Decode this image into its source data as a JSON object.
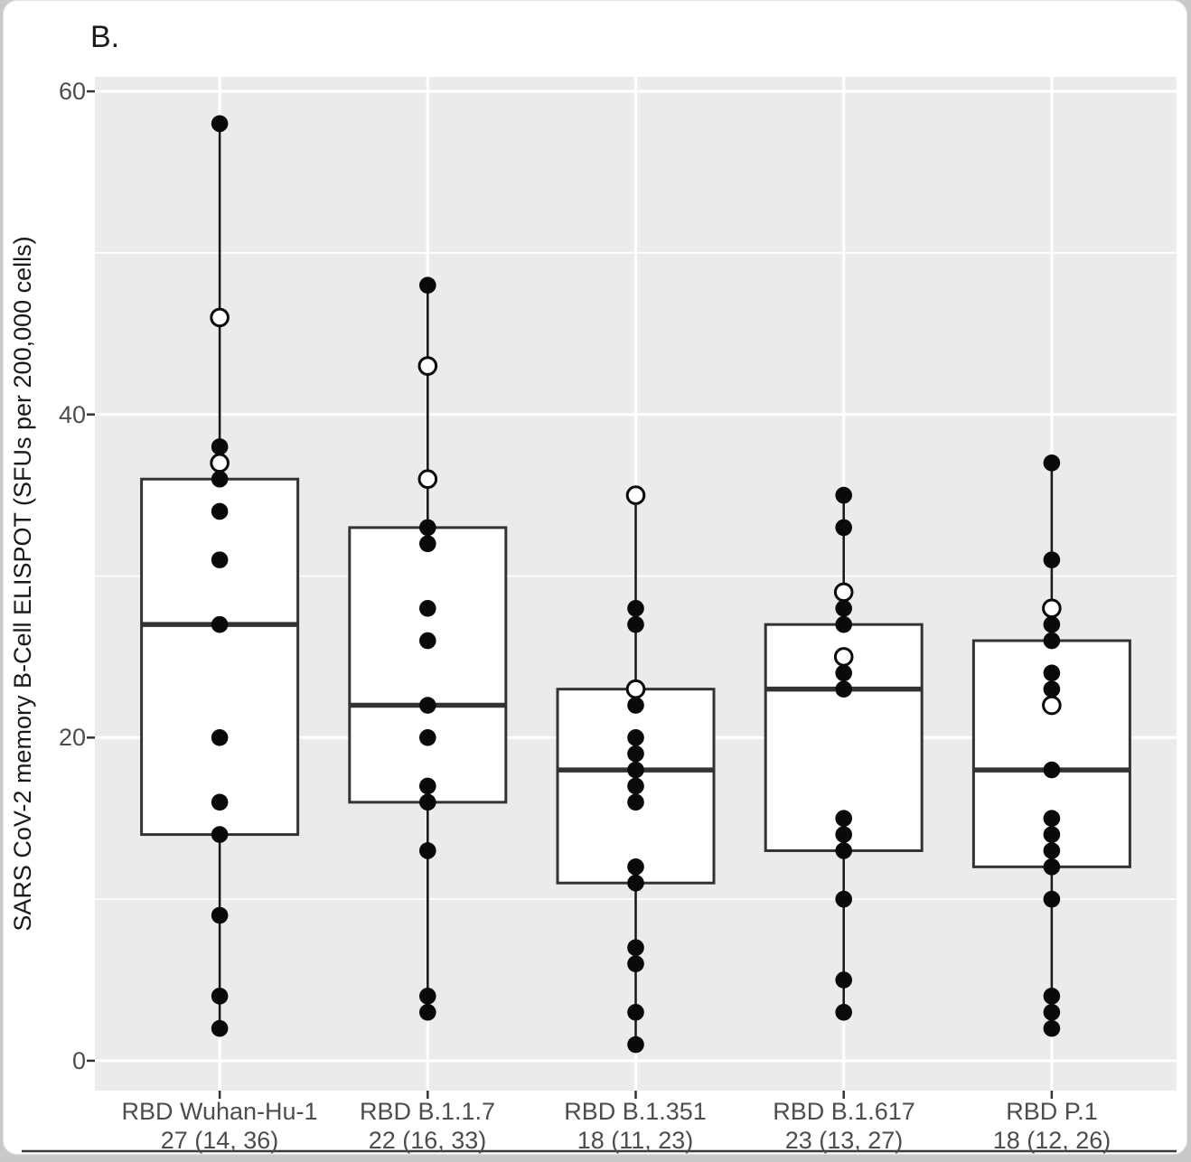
{
  "figure": {
    "panel_label": "B."
  },
  "chart_data": {
    "type": "boxplot",
    "title": "",
    "xlabel": "",
    "ylabel": "SARS CoV-2 memory B-Cell ELISPOT (SFUs per 200,000 cells)",
    "ylim": [
      -1.85,
      60.9
    ],
    "grid": "on",
    "legend": "none",
    "y_axis": {
      "tick_values": [
        60,
        40,
        20,
        0
      ],
      "tick_labels": [
        "60",
        "40",
        "20",
        "0"
      ],
      "minor_tick_values": [
        50,
        30,
        10
      ]
    },
    "point_styles": [
      "filled",
      "open"
    ],
    "groups": [
      {
        "label": "RBD Wuhan-Hu-1",
        "stat_label": "27 (14, 36)",
        "median": 27,
        "q1": 14,
        "q3": 36,
        "whisker_low": 2,
        "whisker_high": 58,
        "points": [
          {
            "value": 58,
            "style": "filled"
          },
          {
            "value": 46,
            "style": "open"
          },
          {
            "value": 38,
            "style": "filled"
          },
          {
            "value": 37,
            "style": "open"
          },
          {
            "value": 36,
            "style": "filled"
          },
          {
            "value": 34,
            "style": "filled"
          },
          {
            "value": 31,
            "style": "filled"
          },
          {
            "value": 27,
            "style": "filled"
          },
          {
            "value": 20,
            "style": "filled"
          },
          {
            "value": 16,
            "style": "filled"
          },
          {
            "value": 14,
            "style": "filled"
          },
          {
            "value": 9,
            "style": "filled"
          },
          {
            "value": 4,
            "style": "filled"
          },
          {
            "value": 2,
            "style": "filled"
          }
        ]
      },
      {
        "label": "RBD B.1.1.7",
        "stat_label": "22 (16, 33)",
        "median": 22,
        "q1": 16,
        "q3": 33,
        "whisker_low": 3,
        "whisker_high": 48,
        "points": [
          {
            "value": 48,
            "style": "filled"
          },
          {
            "value": 43,
            "style": "open"
          },
          {
            "value": 36,
            "style": "open"
          },
          {
            "value": 33,
            "style": "filled"
          },
          {
            "value": 32,
            "style": "filled"
          },
          {
            "value": 28,
            "style": "filled"
          },
          {
            "value": 26,
            "style": "filled"
          },
          {
            "value": 22,
            "style": "filled"
          },
          {
            "value": 20,
            "style": "filled"
          },
          {
            "value": 17,
            "style": "filled"
          },
          {
            "value": 16,
            "style": "filled"
          },
          {
            "value": 13,
            "style": "filled"
          },
          {
            "value": 4,
            "style": "filled"
          },
          {
            "value": 3,
            "style": "filled"
          }
        ]
      },
      {
        "label": "RBD B.1.351",
        "stat_label": "18 (11, 23)",
        "median": 18,
        "q1": 11,
        "q3": 23,
        "whisker_low": 1,
        "whisker_high": 35,
        "points": [
          {
            "value": 35,
            "style": "open"
          },
          {
            "value": 28,
            "style": "filled"
          },
          {
            "value": 27,
            "style": "filled"
          },
          {
            "value": 23,
            "style": "open"
          },
          {
            "value": 22,
            "style": "filled"
          },
          {
            "value": 20,
            "style": "filled"
          },
          {
            "value": 19,
            "style": "filled"
          },
          {
            "value": 18,
            "style": "filled"
          },
          {
            "value": 17,
            "style": "filled"
          },
          {
            "value": 16,
            "style": "filled"
          },
          {
            "value": 12,
            "style": "filled"
          },
          {
            "value": 11,
            "style": "filled"
          },
          {
            "value": 7,
            "style": "filled"
          },
          {
            "value": 6,
            "style": "filled"
          },
          {
            "value": 3,
            "style": "filled"
          },
          {
            "value": 1,
            "style": "filled"
          }
        ]
      },
      {
        "label": "RBD B.1.617",
        "stat_label": "23 (13, 27)",
        "median": 23,
        "q1": 13,
        "q3": 27,
        "whisker_low": 3,
        "whisker_high": 35,
        "points": [
          {
            "value": 35,
            "style": "filled"
          },
          {
            "value": 33,
            "style": "filled"
          },
          {
            "value": 29,
            "style": "open"
          },
          {
            "value": 28,
            "style": "filled"
          },
          {
            "value": 27,
            "style": "filled"
          },
          {
            "value": 25,
            "style": "open"
          },
          {
            "value": 24,
            "style": "filled"
          },
          {
            "value": 23,
            "style": "filled"
          },
          {
            "value": 15,
            "style": "filled"
          },
          {
            "value": 14,
            "style": "filled"
          },
          {
            "value": 13,
            "style": "filled"
          },
          {
            "value": 10,
            "style": "filled"
          },
          {
            "value": 5,
            "style": "filled"
          },
          {
            "value": 3,
            "style": "filled"
          }
        ]
      },
      {
        "label": "RBD P.1",
        "stat_label": "18 (12, 26)",
        "median": 18,
        "q1": 12,
        "q3": 26,
        "whisker_low": 2,
        "whisker_high": 37,
        "points": [
          {
            "value": 37,
            "style": "filled"
          },
          {
            "value": 31,
            "style": "filled"
          },
          {
            "value": 28,
            "style": "open"
          },
          {
            "value": 27,
            "style": "filled"
          },
          {
            "value": 26,
            "style": "filled"
          },
          {
            "value": 24,
            "style": "filled"
          },
          {
            "value": 23,
            "style": "filled"
          },
          {
            "value": 22,
            "style": "open"
          },
          {
            "value": 18,
            "style": "filled"
          },
          {
            "value": 15,
            "style": "filled"
          },
          {
            "value": 14,
            "style": "filled"
          },
          {
            "value": 13,
            "style": "filled"
          },
          {
            "value": 12,
            "style": "filled"
          },
          {
            "value": 10,
            "style": "filled"
          },
          {
            "value": 4,
            "style": "filled"
          },
          {
            "value": 3,
            "style": "filled"
          },
          {
            "value": 2,
            "style": "filled"
          }
        ]
      }
    ],
    "colors": {
      "panel_background": "#ebebeb",
      "grid": "#ffffff",
      "box_fill": "#ffffff",
      "box_border": "#333333",
      "median_line": "#333333",
      "whisker": "#1a1a1a",
      "point": "#0a0a0a",
      "open_point_fill": "#ffffff",
      "axis_tick": "#333333",
      "axis_text": "#4d4d4d",
      "title_text": "#1a1a1a",
      "bottom_rule": "#3a3a3a"
    }
  }
}
